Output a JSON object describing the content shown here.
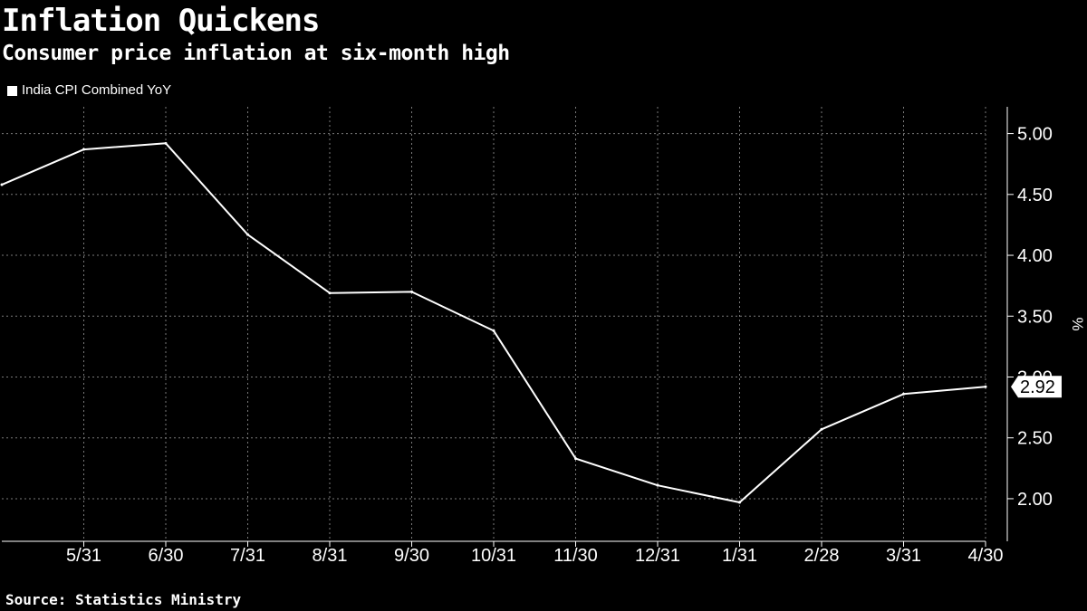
{
  "header": {
    "title": "Inflation Quickens",
    "subtitle": "Consumer price inflation at six-month high"
  },
  "legend": {
    "label": "India CPI Combined YoY"
  },
  "footer": {
    "source": "Source: Statistics Ministry"
  },
  "colors": {
    "background": "#000000",
    "line": "#ffffff",
    "grid": "#7a7a7a"
  },
  "chart_data": {
    "type": "line",
    "title": "Inflation Quickens",
    "subtitle": "Consumer price inflation at six-month high",
    "ylabel": "%",
    "x": [
      "4/30",
      "5/31",
      "6/30",
      "7/31",
      "8/31",
      "9/30",
      "10/31",
      "11/30",
      "12/31",
      "1/31",
      "2/28",
      "3/31",
      "4/30"
    ],
    "x_tick_labels": [
      "5/31",
      "6/30",
      "7/31",
      "8/31",
      "9/30",
      "10/31",
      "11/30",
      "12/31",
      "1/31",
      "2/28",
      "3/31",
      "4/30"
    ],
    "series": [
      {
        "name": "India CPI Combined YoY",
        "values": [
          4.58,
          4.87,
          4.92,
          4.17,
          3.69,
          3.7,
          3.38,
          2.33,
          2.11,
          1.97,
          2.57,
          2.86,
          2.92
        ]
      }
    ],
    "ylim": [
      1.65,
      5.22
    ],
    "y_ticks": [
      2.0,
      2.5,
      3.0,
      3.5,
      4.0,
      4.5,
      5.0
    ],
    "y_tick_labels": [
      "2.00",
      "2.50",
      "3.00",
      "3.50",
      "4.00",
      "4.50",
      "5.00"
    ],
    "last_value_label": "2.92",
    "grid": true,
    "y_axis_position": "right",
    "legend_position": "top-left"
  }
}
